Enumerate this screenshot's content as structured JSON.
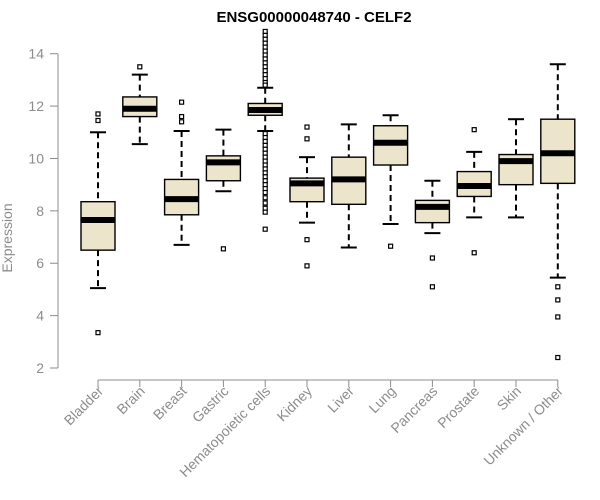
{
  "chart_data": {
    "type": "boxplot",
    "title": "ENSG00000048740 - CELF2",
    "xlabel": "",
    "ylabel": "Expression",
    "ylim": [
      2,
      14.6
    ],
    "yticks": [
      2,
      4,
      6,
      8,
      10,
      12,
      14
    ],
    "grid": false,
    "colors": {
      "box_fill": "#ede4cc",
      "box_edge": "#000000",
      "axis": "#8c8c8c",
      "tick_text": "#8c8c8c"
    },
    "categories": [
      "Bladder",
      "Brain",
      "Breast",
      "Gastric",
      "Hematopoietic cells",
      "Kidney",
      "Liver",
      "Lung",
      "Pancreas",
      "Prostate",
      "Skin",
      "Unknown / Other"
    ],
    "boxes": [
      {
        "category": "Bladder",
        "whisker_low": 5.05,
        "q1": 6.5,
        "median": 7.65,
        "q3": 8.35,
        "whisker_high": 11.0,
        "outliers": [
          11.7,
          11.45,
          3.35
        ]
      },
      {
        "category": "Brain",
        "whisker_low": 10.55,
        "q1": 11.6,
        "median": 11.9,
        "q3": 12.35,
        "whisker_high": 13.2,
        "outliers": [
          13.5
        ]
      },
      {
        "category": "Breast",
        "whisker_low": 6.7,
        "q1": 7.85,
        "median": 8.45,
        "q3": 9.2,
        "whisker_high": 11.05,
        "outliers": [
          12.15,
          11.6,
          11.4
        ]
      },
      {
        "category": "Gastric",
        "whisker_low": 8.75,
        "q1": 9.15,
        "median": 9.85,
        "q3": 10.1,
        "whisker_high": 11.1,
        "outliers": [
          6.55
        ]
      },
      {
        "category": "Hematopoietic cells",
        "whisker_low": 11.05,
        "q1": 11.65,
        "median": 11.85,
        "q3": 12.1,
        "whisker_high": 12.7,
        "outliers": [
          14.85,
          14.7,
          14.55,
          14.4,
          14.25,
          14.1,
          13.95,
          13.8,
          13.65,
          13.5,
          13.35,
          13.2,
          13.05,
          12.9,
          12.8,
          10.95,
          10.8,
          10.65,
          10.5,
          10.35,
          10.2,
          10.05,
          9.9,
          9.75,
          9.6,
          9.45,
          9.3,
          9.15,
          9.0,
          8.85,
          8.7,
          8.5,
          8.3,
          8.1,
          7.95,
          7.3
        ]
      },
      {
        "category": "Kidney",
        "whisker_low": 7.55,
        "q1": 8.35,
        "median": 9.05,
        "q3": 9.25,
        "whisker_high": 10.05,
        "outliers": [
          11.2,
          10.75,
          6.9,
          5.9
        ]
      },
      {
        "category": "Liver",
        "whisker_low": 6.6,
        "q1": 8.25,
        "median": 9.2,
        "q3": 10.05,
        "whisker_high": 11.3,
        "outliers": []
      },
      {
        "category": "Lung",
        "whisker_low": 7.5,
        "q1": 9.75,
        "median": 10.6,
        "q3": 11.25,
        "whisker_high": 11.65,
        "outliers": [
          6.65
        ]
      },
      {
        "category": "Pancreas",
        "whisker_low": 7.15,
        "q1": 7.55,
        "median": 8.15,
        "q3": 8.4,
        "whisker_high": 9.15,
        "outliers": [
          6.2,
          5.1
        ]
      },
      {
        "category": "Prostate",
        "whisker_low": 7.75,
        "q1": 8.55,
        "median": 8.95,
        "q3": 9.5,
        "whisker_high": 10.25,
        "outliers": [
          11.1,
          6.4
        ]
      },
      {
        "category": "Skin",
        "whisker_low": 7.75,
        "q1": 9.0,
        "median": 9.9,
        "q3": 10.15,
        "whisker_high": 11.5,
        "outliers": []
      },
      {
        "category": "Unknown / Other",
        "whisker_low": 5.45,
        "q1": 9.05,
        "median": 10.2,
        "q3": 11.5,
        "whisker_high": 13.6,
        "outliers": [
          5.1,
          4.6,
          3.95,
          2.4
        ]
      }
    ]
  }
}
